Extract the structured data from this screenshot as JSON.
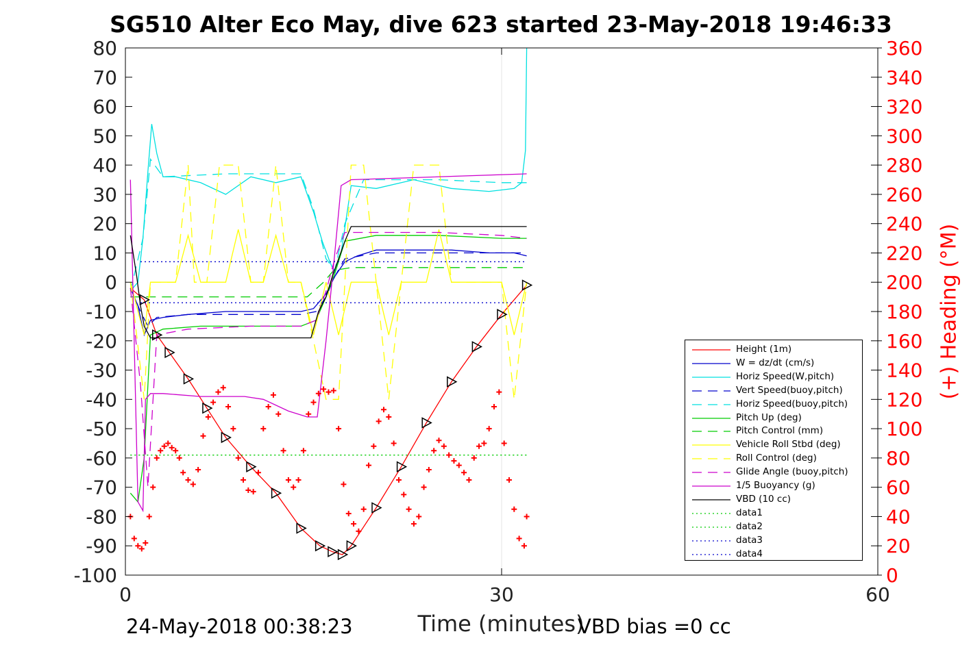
{
  "title": "SG510 Alter Eco May, dive 623 started 23-May-2018 19:46:33",
  "xlabel": "Time (minutes)",
  "ylabel_right": "(+) Heading (°M)",
  "footer_left": "24-May-2018 00:38:23",
  "footer_right": "VBD bias =0 cc",
  "colors": {
    "axis": "#000000",
    "heading_axis": "#ff0000",
    "grid": "#e6e6e6"
  },
  "legend": [
    {
      "label": "Height (1m)",
      "color": "#ff0000",
      "dash": "solid"
    },
    {
      "label": "W = dz/dt (cm/s)",
      "color": "#0000cc",
      "dash": "solid"
    },
    {
      "label": "Horiz Speed(W,pitch)",
      "color": "#00e0e0",
      "dash": "solid"
    },
    {
      "label": "Vert Speed(buoy,pitch)",
      "color": "#0000cc",
      "dash": "dashed"
    },
    {
      "label": "Horiz Speed(buoy,pitch)",
      "color": "#00e0e0",
      "dash": "dashed"
    },
    {
      "label": "Pitch Up (deg)",
      "color": "#00cc00",
      "dash": "solid"
    },
    {
      "label": "Pitch Control (mm)",
      "color": "#00cc00",
      "dash": "dashed"
    },
    {
      "label": "Vehicle Roll Stbd (deg)",
      "color": "#ffff00",
      "dash": "solid"
    },
    {
      "label": "Roll Control (deg)",
      "color": "#ffff00",
      "dash": "dashed"
    },
    {
      "label": "Glide Angle (buoy,pitch)",
      "color": "#cc00cc",
      "dash": "dashed"
    },
    {
      "label": "1/5 Buoyancy (g)",
      "color": "#cc00cc",
      "dash": "solid"
    },
    {
      "label": "VBD (10 cc)",
      "color": "#000000",
      "dash": "solid"
    },
    {
      "label": "data1",
      "color": "#00cc00",
      "dash": "dotted"
    },
    {
      "label": "data2",
      "color": "#00cc00",
      "dash": "dotted"
    },
    {
      "label": "data3",
      "color": "#0000cc",
      "dash": "dotted"
    },
    {
      "label": "data4",
      "color": "#0000cc",
      "dash": "dotted"
    }
  ],
  "chart_data": {
    "type": "line",
    "xlim": [
      0,
      60
    ],
    "ylim": [
      -100,
      80
    ],
    "ylim_right": [
      0,
      360
    ],
    "x_ticks": [
      "0",
      "30",
      "60"
    ],
    "x_tick_values": [
      0,
      30,
      60
    ],
    "y_ticks": [
      "80",
      "70",
      "60",
      "50",
      "40",
      "30",
      "20",
      "10",
      "0",
      "-10",
      "-20",
      "-30",
      "-40",
      "-50",
      "-60",
      "-70",
      "-80",
      "-90",
      "-100"
    ],
    "y_tick_values": [
      80,
      70,
      60,
      50,
      40,
      30,
      20,
      10,
      0,
      -10,
      -20,
      -30,
      -40,
      -50,
      -60,
      -70,
      -80,
      -90,
      -100
    ],
    "y_right_ticks": [
      "360",
      "340",
      "320",
      "300",
      "280",
      "260",
      "240",
      "220",
      "200",
      "180",
      "160",
      "140",
      "120",
      "100",
      "80",
      "60",
      "40",
      "20",
      "0"
    ],
    "y_right_tick_values": [
      360,
      340,
      320,
      300,
      280,
      260,
      240,
      220,
      200,
      180,
      160,
      140,
      120,
      100,
      80,
      60,
      40,
      20,
      0
    ],
    "grid": "vertical-x",
    "legend_position": "bottom-right",
    "series": [
      {
        "name": "Height (1m)",
        "x": [
          0.4,
          1.5,
          2.5,
          3.5,
          5.0,
          6.5,
          8.0,
          10.0,
          12.0,
          14.0,
          15.5,
          16.5,
          17.3,
          18.0,
          20.0,
          22.0,
          24.0,
          26.0,
          28.0,
          30.0,
          32.0
        ],
        "y": [
          -2,
          -6,
          -18,
          -24,
          -33,
          -43,
          -53,
          -63,
          -72,
          -84,
          -90,
          -92,
          -93,
          -90,
          -77,
          -63,
          -48,
          -34,
          -22,
          -11,
          -1
        ]
      },
      {
        "name": "W = dz/dt (cm/s)",
        "x": [
          0.4,
          1.0,
          1.5,
          2.0,
          3.0,
          5.0,
          8.0,
          11.0,
          14.0,
          15.0,
          16.0,
          16.7,
          17.5,
          18.5,
          20.0,
          23.0,
          26.0,
          29.0,
          31.0,
          32.0
        ],
        "y": [
          -2,
          -8,
          -18,
          -13,
          -12,
          -11,
          -10,
          -10,
          -10,
          -9,
          -4,
          2,
          7,
          9,
          11,
          11,
          11,
          10,
          10,
          9
        ]
      },
      {
        "name": "Horiz Speed(W,pitch)",
        "x": [
          0.4,
          1.0,
          1.4,
          1.8,
          2.1,
          2.5,
          3.0,
          4.0,
          6.0,
          8.0,
          10.0,
          12.0,
          14.0,
          15.0,
          15.7,
          16.3,
          16.7,
          17.2,
          18.0,
          20.0,
          23.0,
          26.0,
          29.0,
          31.0,
          31.6,
          31.9,
          32.0
        ],
        "y": [
          -3,
          0,
          15,
          38,
          54,
          44,
          36,
          36,
          34,
          30,
          36,
          34,
          36,
          24,
          14,
          7,
          3,
          10,
          33,
          32,
          35,
          32,
          31,
          32,
          34,
          45,
          80
        ]
      },
      {
        "name": "Vert Speed(buoy,pitch)",
        "x": [
          0.4,
          1.2,
          1.8,
          2.5,
          5.0,
          10.0,
          14.0,
          15.2,
          16.0,
          16.7,
          17.5,
          20.0,
          25.0,
          30.0,
          32.0
        ],
        "y": [
          -2,
          -10,
          -15,
          -12,
          -11,
          -11,
          -11,
          -10,
          -5,
          2,
          8,
          10,
          10,
          10,
          10
        ]
      },
      {
        "name": "Horiz Speed(buoy,pitch)",
        "x": [
          0.4,
          1.4,
          2.0,
          3.0,
          8.0,
          14.0,
          15.0,
          16.0,
          16.7,
          17.5,
          19.0,
          25.0,
          30.0,
          32.0
        ],
        "y": [
          -3,
          15,
          42,
          36,
          37,
          37,
          25,
          8,
          4,
          20,
          35,
          35,
          34,
          34
        ]
      },
      {
        "name": "Pitch Up (deg)",
        "x": [
          0.4,
          1.0,
          1.5,
          2.0,
          3.0,
          6.0,
          10.0,
          14.0,
          15.2,
          16.0,
          16.7,
          17.5,
          20.0,
          25.0,
          30.0,
          32.0
        ],
        "y": [
          -72,
          -75,
          -60,
          -18,
          -16,
          -15,
          -15,
          -15,
          -13,
          -5,
          3,
          14,
          16,
          16,
          15,
          15
        ]
      },
      {
        "name": "Pitch Control (mm)",
        "x": [
          0.4,
          1.5,
          14.5,
          15.8,
          16.6,
          18.0,
          32.0
        ],
        "y": [
          -5,
          -5,
          -5,
          0,
          4,
          5,
          5
        ]
      },
      {
        "name": "Vehicle Roll Stbd (deg)",
        "x": [
          0.4,
          1.5,
          2.0,
          3.0,
          4.0,
          5.0,
          6.0,
          7.0,
          8.0,
          9.0,
          10.0,
          11.0,
          12.0,
          13.0,
          14.0,
          15.0,
          16.0,
          17.0,
          18.0,
          19.0,
          20.0,
          21.0,
          22.0,
          23.0,
          24.0,
          25.0,
          26.0,
          27.0,
          28.0,
          29.0,
          30.0,
          31.0,
          32.0
        ],
        "y": [
          0,
          -18,
          0,
          0,
          0,
          16,
          0,
          0,
          0,
          18,
          0,
          0,
          16,
          0,
          0,
          -18,
          0,
          -18,
          0,
          0,
          0,
          -18,
          0,
          0,
          0,
          18,
          0,
          0,
          0,
          0,
          0,
          -18,
          0
        ]
      },
      {
        "name": "Roll Control (deg)",
        "x": [
          0.4,
          1.5,
          2.0,
          3.0,
          4.0,
          5.0,
          5.5,
          6.5,
          7.5,
          9.0,
          10.0,
          11.0,
          12.0,
          13.0,
          14.0,
          16.0,
          17.0,
          18.0,
          19.0,
          20.0,
          21.0,
          22.0,
          23.0,
          24.0,
          25.0,
          26.0,
          28.0,
          30.0,
          31.0,
          32.0
        ],
        "y": [
          0,
          -40,
          0,
          0,
          0,
          40,
          0,
          0,
          40,
          40,
          0,
          0,
          40,
          0,
          0,
          -40,
          -40,
          40,
          40,
          0,
          -40,
          0,
          40,
          40,
          40,
          0,
          0,
          0,
          -40,
          0
        ]
      },
      {
        "name": "Glide Angle (buoy,pitch)",
        "x": [
          0.4,
          1.2,
          1.8,
          2.5,
          5.0,
          10.0,
          14.0,
          15.2,
          16.0,
          16.7,
          17.5,
          20.0,
          25.0,
          30.0,
          32.0
        ],
        "y": [
          -2,
          -35,
          -70,
          -18,
          -16,
          -15,
          -15,
          -13,
          -3,
          8,
          17,
          17,
          17,
          16,
          15
        ]
      },
      {
        "name": "1/5 Buoyancy (g)",
        "x": [
          0.4,
          1.0,
          1.4,
          1.6,
          2.0,
          3.0,
          6.0,
          9.5,
          11.0,
          13.0,
          14.5,
          15.3,
          16.0,
          16.7,
          17.2,
          18.0,
          32.0
        ],
        "y": [
          35,
          -75,
          -78,
          -40,
          -38,
          -38,
          -39,
          -39,
          -40,
          -44,
          -46,
          -46,
          -20,
          10,
          33,
          35,
          37
        ]
      },
      {
        "name": "VBD (10 cc)",
        "x": [
          0.4,
          0.9,
          1.2,
          1.5,
          2.0,
          14.8,
          15.4,
          16.0,
          16.5,
          17.0,
          17.5,
          18.0,
          32.0
        ],
        "y": [
          16,
          2,
          -8,
          -15,
          -19,
          -19,
          -10,
          -5,
          2,
          8,
          14,
          19,
          19
        ]
      },
      {
        "name": "data1",
        "x": [
          0.4,
          32.0
        ],
        "y": [
          -59,
          -59
        ]
      },
      {
        "name": "data2",
        "x": [
          0.4,
          32.0
        ],
        "y": [
          -59,
          -59
        ]
      },
      {
        "name": "data3",
        "x": [
          1.2,
          32.0
        ],
        "y": [
          7,
          7
        ]
      },
      {
        "name": "data4",
        "x": [
          1.2,
          32.0
        ],
        "y": [
          -7,
          -7
        ]
      }
    ],
    "heading_series": {
      "name": "Heading",
      "axis": "right",
      "marker": "+",
      "x": [
        0.4,
        0.7,
        1.0,
        1.3,
        1.6,
        1.9,
        2.2,
        2.5,
        2.8,
        3.1,
        3.4,
        3.7,
        4.0,
        4.3,
        4.6,
        5.0,
        5.4,
        5.8,
        6.2,
        6.6,
        7.0,
        7.4,
        7.8,
        8.2,
        8.6,
        9.0,
        9.4,
        9.8,
        10.2,
        10.6,
        11.0,
        11.4,
        11.8,
        12.2,
        12.6,
        13.0,
        13.4,
        13.8,
        14.2,
        14.6,
        15.0,
        15.4,
        15.8,
        16.2,
        16.6,
        17.0,
        17.4,
        17.8,
        18.2,
        18.6,
        19.0,
        19.4,
        19.8,
        20.2,
        20.6,
        21.0,
        21.4,
        21.8,
        22.2,
        22.6,
        23.0,
        23.4,
        23.8,
        24.2,
        24.6,
        25.0,
        25.4,
        25.8,
        26.2,
        26.6,
        27.0,
        27.4,
        27.8,
        28.2,
        28.6,
        29.0,
        29.4,
        29.8,
        30.2,
        30.6,
        31.0,
        31.4,
        31.8,
        32.0
      ],
      "y": [
        40,
        25,
        20,
        18,
        22,
        40,
        60,
        80,
        85,
        88,
        90,
        87,
        85,
        80,
        70,
        65,
        62,
        72,
        95,
        108,
        118,
        125,
        128,
        115,
        100,
        80,
        65,
        58,
        57,
        70,
        100,
        115,
        123,
        110,
        85,
        65,
        60,
        65,
        85,
        110,
        118,
        124,
        127,
        125,
        126,
        100,
        62,
        42,
        35,
        30,
        45,
        75,
        88,
        105,
        113,
        108,
        90,
        65,
        55,
        45,
        35,
        40,
        60,
        72,
        85,
        92,
        88,
        82,
        78,
        75,
        70,
        65,
        80,
        88,
        90,
        100,
        115,
        125,
        90,
        65,
        45,
        25,
        20,
        40
      ]
    }
  }
}
